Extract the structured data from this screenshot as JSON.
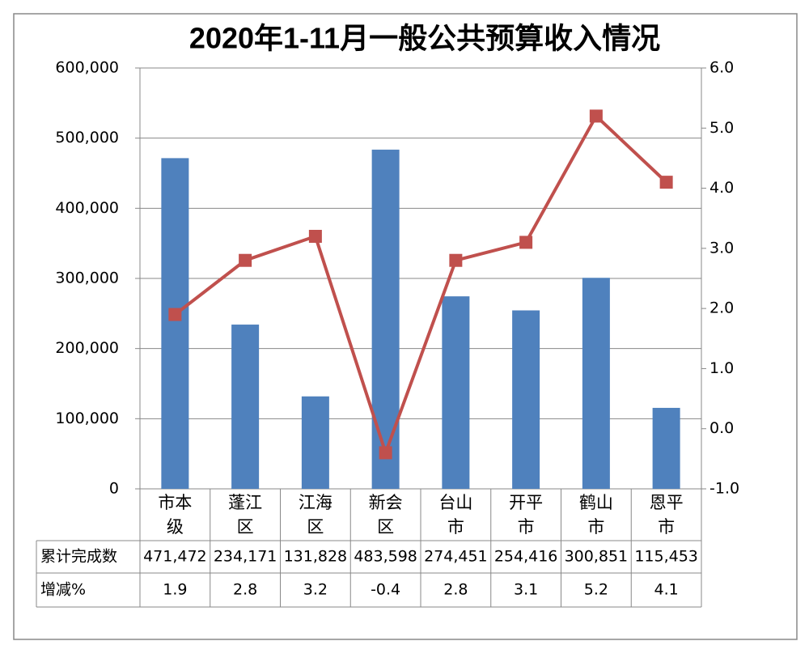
{
  "chart_data": {
    "type": "bar-line",
    "title": "2020年1-11月一般公共预算收入情况",
    "categories": [
      "市本级",
      "蓬江区",
      "江海区",
      "新会区",
      "台山市",
      "开平市",
      "鹤山市",
      "恩平市"
    ],
    "series": [
      {
        "name": "累计完成数",
        "type": "bar",
        "color": "#4f81bd",
        "values": [
          471472,
          234171,
          131828,
          483598,
          274451,
          254416,
          300851,
          115453
        ],
        "value_labels": [
          "471,472",
          "234,171",
          "131,828",
          "483,598",
          "274,451",
          "254,416",
          "300,851",
          "115,453"
        ]
      },
      {
        "name": "增减%",
        "type": "line",
        "axis": "y2",
        "color": "#c0504d",
        "values": [
          1.9,
          2.8,
          3.2,
          -0.4,
          2.8,
          3.1,
          5.2,
          4.1
        ]
      }
    ],
    "ylim": [
      0,
      600000
    ],
    "yticks": [
      0,
      {
        "value": 100000,
        "label": "100,000"
      },
      {
        "value": 200000,
        "label": "200,000"
      },
      {
        "value": 300000,
        "label": "300,000"
      },
      {
        "value": 400000,
        "label": "400,000"
      },
      {
        "value": 500000,
        "label": "500,000"
      },
      {
        "value": 600000,
        "label": "600,000"
      }
    ],
    "y2lim": [
      -1,
      6
    ],
    "y2ticks": [
      {
        "value": -1,
        "label": "-1.0"
      },
      {
        "value": 0,
        "label": "0.0"
      },
      {
        "value": 1,
        "label": "1.0"
      },
      {
        "value": 2,
        "label": "2.0"
      },
      {
        "value": 3,
        "label": "3.0"
      },
      {
        "value": 4,
        "label": "4.0"
      },
      {
        "value": 5,
        "label": "5.0"
      },
      {
        "value": 6,
        "label": "6.0"
      }
    ],
    "grid": true
  }
}
